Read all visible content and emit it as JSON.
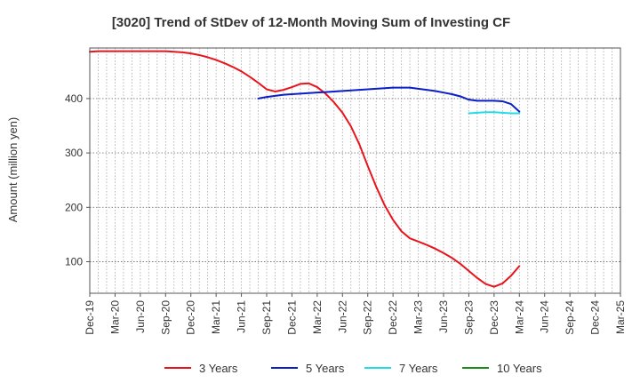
{
  "chart_data": {
    "type": "line",
    "title": "[3020]  Trend of StDev of 12-Month Moving Sum of Investing CF",
    "xlabel": "",
    "ylabel": "Amount (million yen)",
    "ylim": [
      42,
      493
    ],
    "yticks": [
      100,
      200,
      300,
      400
    ],
    "grid": true,
    "legend_position": "bottom",
    "x_tick_labels": [
      "Dec-19",
      "Mar-20",
      "Jun-20",
      "Sep-20",
      "Dec-20",
      "Mar-21",
      "Jun-21",
      "Sep-21",
      "Dec-21",
      "Mar-22",
      "Jun-22",
      "Sep-22",
      "Dec-22",
      "Mar-23",
      "Jun-23",
      "Sep-23",
      "Dec-23",
      "Mar-24",
      "Jun-24",
      "Sep-24",
      "Dec-24",
      "Mar-25"
    ],
    "series": [
      {
        "name": "3 Years",
        "color": "#e8141c",
        "points": [
          [
            "Dec-19",
            486
          ],
          [
            "Jan-20",
            487
          ],
          [
            "Feb-20",
            487
          ],
          [
            "Mar-20",
            487
          ],
          [
            "Apr-20",
            487
          ],
          [
            "May-20",
            487
          ],
          [
            "Jun-20",
            487
          ],
          [
            "Jul-20",
            487
          ],
          [
            "Aug-20",
            487
          ],
          [
            "Sep-20",
            487
          ],
          [
            "Oct-20",
            486
          ],
          [
            "Nov-20",
            485
          ],
          [
            "Dec-20",
            483
          ],
          [
            "Jan-21",
            480
          ],
          [
            "Feb-21",
            476
          ],
          [
            "Mar-21",
            471
          ],
          [
            "Apr-21",
            465
          ],
          [
            "May-21",
            458
          ],
          [
            "Jun-21",
            450
          ],
          [
            "Jul-21",
            440
          ],
          [
            "Aug-21",
            429
          ],
          [
            "Sep-21",
            417
          ],
          [
            "Oct-21",
            413
          ],
          [
            "Nov-21",
            416
          ],
          [
            "Dec-21",
            421
          ],
          [
            "Jan-22",
            427
          ],
          [
            "Feb-22",
            428
          ],
          [
            "Mar-22",
            421
          ],
          [
            "Apr-22",
            409
          ],
          [
            "May-22",
            393
          ],
          [
            "Jun-22",
            374
          ],
          [
            "Jul-22",
            349
          ],
          [
            "Aug-22",
            316
          ],
          [
            "Sep-22",
            276
          ],
          [
            "Oct-22",
            238
          ],
          [
            "Nov-22",
            204
          ],
          [
            "Dec-22",
            177
          ],
          [
            "Jan-23",
            156
          ],
          [
            "Feb-23",
            143
          ],
          [
            "Mar-23",
            137
          ],
          [
            "Apr-23",
            131
          ],
          [
            "May-23",
            124
          ],
          [
            "Jun-23",
            116
          ],
          [
            "Jul-23",
            107
          ],
          [
            "Aug-23",
            96
          ],
          [
            "Sep-23",
            83
          ],
          [
            "Oct-23",
            70
          ],
          [
            "Nov-23",
            59
          ],
          [
            "Dec-23",
            54
          ],
          [
            "Jan-24",
            60
          ],
          [
            "Feb-24",
            74
          ],
          [
            "Mar-24",
            92
          ]
        ]
      },
      {
        "name": "5 Years",
        "color": "#0b1ec8",
        "points": [
          [
            "Aug-21",
            400
          ],
          [
            "Sep-21",
            403
          ],
          [
            "Oct-21",
            405
          ],
          [
            "Nov-21",
            407
          ],
          [
            "Dec-21",
            408
          ],
          [
            "Jan-22",
            409
          ],
          [
            "Feb-22",
            410
          ],
          [
            "Mar-22",
            411
          ],
          [
            "Apr-22",
            412
          ],
          [
            "May-22",
            413
          ],
          [
            "Jun-22",
            414
          ],
          [
            "Jul-22",
            415
          ],
          [
            "Aug-22",
            416
          ],
          [
            "Sep-22",
            417
          ],
          [
            "Oct-22",
            418
          ],
          [
            "Nov-22",
            419
          ],
          [
            "Dec-22",
            420
          ],
          [
            "Jan-23",
            420
          ],
          [
            "Feb-23",
            420
          ],
          [
            "Mar-23",
            418
          ],
          [
            "Apr-23",
            416
          ],
          [
            "May-23",
            414
          ],
          [
            "Jun-23",
            411
          ],
          [
            "Jul-23",
            408
          ],
          [
            "Aug-23",
            404
          ],
          [
            "Sep-23",
            398
          ],
          [
            "Oct-23",
            396
          ],
          [
            "Nov-23",
            396
          ],
          [
            "Dec-23",
            396
          ],
          [
            "Jan-24",
            395
          ],
          [
            "Feb-24",
            390
          ],
          [
            "Mar-24",
            376
          ]
        ]
      },
      {
        "name": "7 Years",
        "color": "#22dce8",
        "points": [
          [
            "Sep-23",
            373
          ],
          [
            "Oct-23",
            374
          ],
          [
            "Nov-23",
            375
          ],
          [
            "Dec-23",
            375
          ],
          [
            "Jan-24",
            374
          ],
          [
            "Feb-24",
            373
          ],
          [
            "Mar-24",
            373
          ]
        ]
      },
      {
        "name": "10 Years",
        "color": "#1a8c1a",
        "points": []
      }
    ]
  }
}
